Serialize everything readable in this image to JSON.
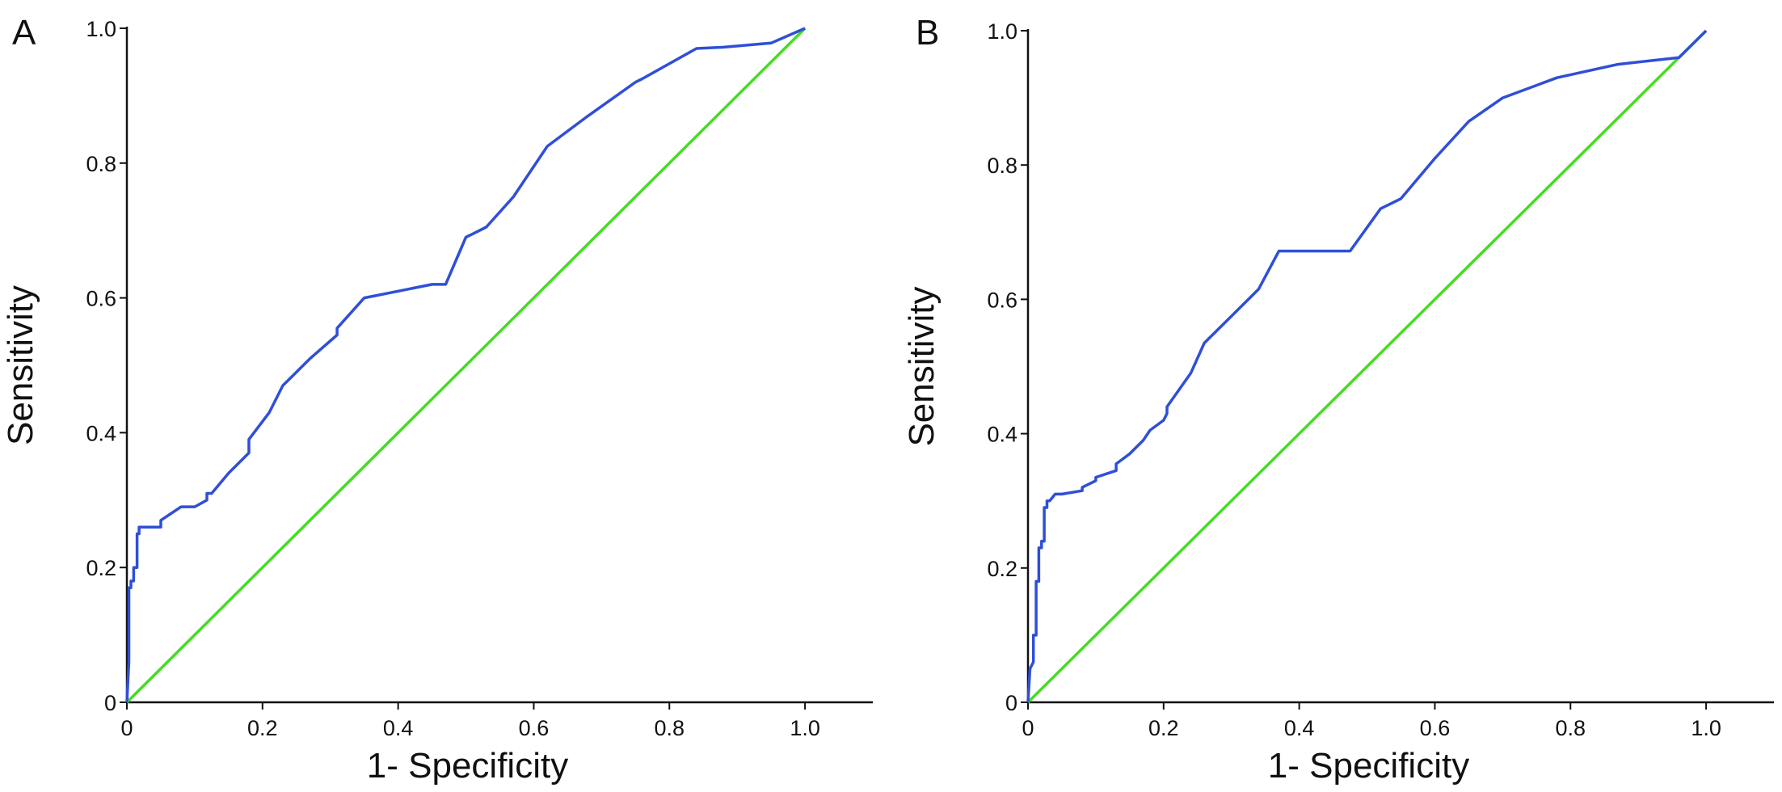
{
  "figure": {
    "panels": [
      "A",
      "B"
    ]
  },
  "colors": {
    "roc_curve": "#2f4fd8",
    "reference_line": "#44dd22",
    "axis": "#111111"
  },
  "chart_data": [
    {
      "type": "line",
      "panel_label": "A",
      "xlabel": "1- Specificity",
      "ylabel": "Sensitivity",
      "xlim": [
        0,
        1.1
      ],
      "ylim": [
        0,
        1.0
      ],
      "x_ticks": [
        "0",
        "0.2",
        "0.4",
        "0.6",
        "0.8",
        "1.0"
      ],
      "y_ticks": [
        "0",
        "0.2",
        "0.4",
        "0.6",
        "0.8",
        "1.0"
      ],
      "grid": false,
      "legend": "none",
      "series": [
        {
          "x": [
            0,
            0.003,
            0.003,
            0.006,
            0.006,
            0.01,
            0.01,
            0.015,
            0.015,
            0.018,
            0.018,
            0.022,
            0.022,
            0.05,
            0.05,
            0.065,
            0.08,
            0.1,
            0.118,
            0.118,
            0.125,
            0.15,
            0.17,
            0.18,
            0.18,
            0.21,
            0.23,
            0.24,
            0.27,
            0.31,
            0.31,
            0.35,
            0.4,
            0.45,
            0.47,
            0.5,
            0.51,
            0.53,
            0.57,
            0.62,
            0.68,
            0.75,
            0.76,
            0.84,
            0.88,
            0.95,
            1.0
          ],
          "y": [
            0,
            0.06,
            0.17,
            0.17,
            0.18,
            0.18,
            0.2,
            0.2,
            0.25,
            0.25,
            0.26,
            0.26,
            0.26,
            0.26,
            0.27,
            0.28,
            0.29,
            0.29,
            0.3,
            0.31,
            0.31,
            0.34,
            0.36,
            0.37,
            0.39,
            0.43,
            0.47,
            0.48,
            0.51,
            0.545,
            0.555,
            0.6,
            0.61,
            0.62,
            0.62,
            0.69,
            0.695,
            0.705,
            0.75,
            0.825,
            0.87,
            0.92,
            0.925,
            0.97,
            0.972,
            0.978,
            1.0
          ]
        },
        {
          "x": [
            0,
            1.0
          ],
          "y": [
            0,
            1.0
          ]
        }
      ]
    },
    {
      "type": "line",
      "panel_label": "B",
      "xlabel": "1- Specificity",
      "ylabel": "Sensitivity",
      "xlim": [
        0,
        1.1
      ],
      "ylim": [
        0,
        1.0
      ],
      "x_ticks": [
        "0",
        "0.2",
        "0.4",
        "0.6",
        "0.8",
        "1.0"
      ],
      "y_ticks": [
        "0",
        "0.2",
        "0.4",
        "0.6",
        "0.8",
        "1.0"
      ],
      "grid": false,
      "legend": "none",
      "series": [
        {
          "x": [
            0,
            0.003,
            0.003,
            0.008,
            0.008,
            0.012,
            0.012,
            0.016,
            0.016,
            0.02,
            0.02,
            0.024,
            0.024,
            0.028,
            0.028,
            0.032,
            0.032,
            0.04,
            0.045,
            0.05,
            0.08,
            0.08,
            0.1,
            0.1,
            0.13,
            0.13,
            0.15,
            0.17,
            0.18,
            0.2,
            0.205,
            0.205,
            0.24,
            0.26,
            0.3,
            0.34,
            0.37,
            0.475,
            0.52,
            0.53,
            0.55,
            0.6,
            0.65,
            0.7,
            0.78,
            0.87,
            0.96,
            1.0
          ],
          "y": [
            0,
            0.05,
            0.05,
            0.06,
            0.1,
            0.1,
            0.18,
            0.18,
            0.23,
            0.23,
            0.24,
            0.24,
            0.29,
            0.29,
            0.3,
            0.3,
            0.3,
            0.31,
            0.31,
            0.31,
            0.315,
            0.32,
            0.33,
            0.335,
            0.345,
            0.355,
            0.37,
            0.39,
            0.405,
            0.42,
            0.43,
            0.44,
            0.49,
            0.535,
            0.575,
            0.615,
            0.672,
            0.672,
            0.735,
            0.74,
            0.75,
            0.81,
            0.865,
            0.9,
            0.93,
            0.95,
            0.96,
            1.0
          ]
        },
        {
          "x": [
            0,
            1.0
          ],
          "y": [
            0,
            1.0
          ]
        }
      ]
    }
  ]
}
